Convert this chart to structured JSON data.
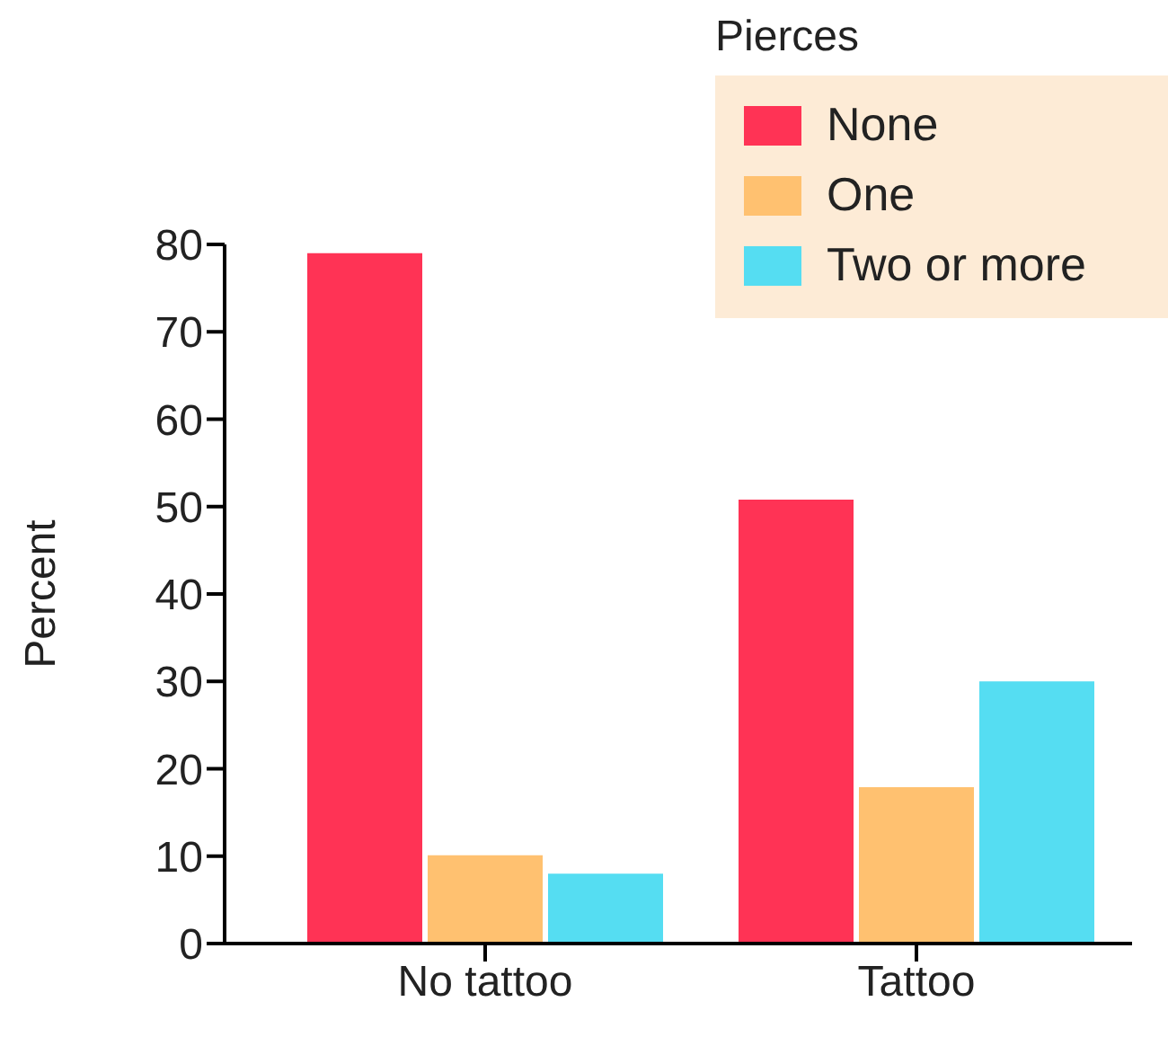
{
  "chart_data": {
    "type": "bar",
    "ylabel": "Percent",
    "legend_title": "Pierces",
    "categories": [
      "No tattoo",
      "Tattoo"
    ],
    "series": [
      {
        "name": "None",
        "color": "#ff3355",
        "values": [
          79.0,
          50.8
        ]
      },
      {
        "name": "One",
        "color": "#ffc170",
        "values": [
          10.1,
          17.9
        ]
      },
      {
        "name": "Two or more",
        "color": "#55ddf2",
        "values": [
          8.0,
          30.0
        ]
      }
    ],
    "ylim": [
      0,
      80
    ],
    "yticks": [
      0,
      10,
      20,
      30,
      40,
      50,
      60,
      70,
      80
    ],
    "grid": false,
    "legend": "top right"
  }
}
